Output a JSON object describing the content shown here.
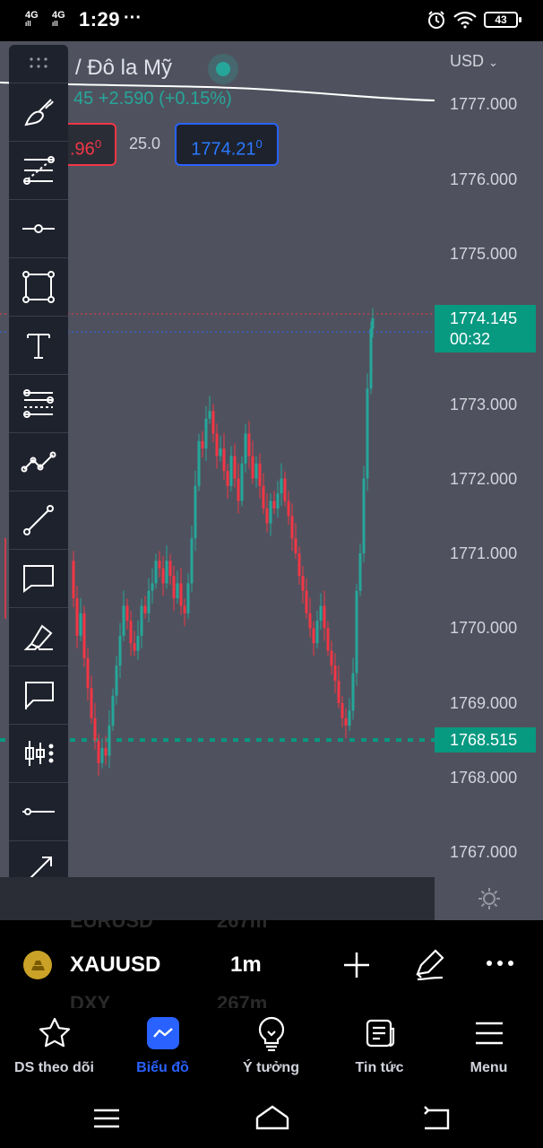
{
  "status_bar": {
    "network_1": "4G",
    "network_2": "4G",
    "time": "1:29",
    "more": "···",
    "battery": "43"
  },
  "chart": {
    "title": "/ Đô la Mỹ",
    "change": "45  +2.590 (+0.15%)",
    "currency": "USD",
    "sell_price": ".96",
    "sell_price_sup": "0",
    "spread": "25.0",
    "buy_price": "1774.21",
    "buy_price_sup": "0",
    "current_price": "1774.145",
    "countdown": "00:32",
    "low_line_price": "1768.515",
    "price_ticks": [
      "1777.000",
      "1776.000",
      "1775.000",
      "1773.000",
      "1772.000",
      "1771.000",
      "1770.000",
      "1769.000",
      "1768.000",
      "1767.000"
    ],
    "colors": {
      "up": "#26a69a",
      "down": "#f23645",
      "bg": "#4f525e",
      "accent": "#2962ff"
    }
  },
  "toolbar": {
    "tools": [
      "brush-icon",
      "fib-retracement-icon",
      "horizontal-ray-icon",
      "rectangle-icon",
      "text-icon",
      "fib-channel-icon",
      "zigzag-icon",
      "trend-line-icon",
      "callout-icon",
      "highlighter-icon",
      "flag-note-icon",
      "long-short-position-icon",
      "horizontal-line-icon",
      "arrow-icon"
    ]
  },
  "peek": {
    "row1_symbol": "EURUSD",
    "row1_value": "267m",
    "row2_symbol": "DXY",
    "row2_value": "267m"
  },
  "symbol_bar": {
    "symbol": "XAUUSD",
    "interval": "1m"
  },
  "bottom_nav": {
    "items": [
      {
        "label": "DS theo dõi"
      },
      {
        "label": "Biểu đồ"
      },
      {
        "label": "Ý tưởng"
      },
      {
        "label": "Tin tức"
      },
      {
        "label": "Menu"
      }
    ]
  }
}
